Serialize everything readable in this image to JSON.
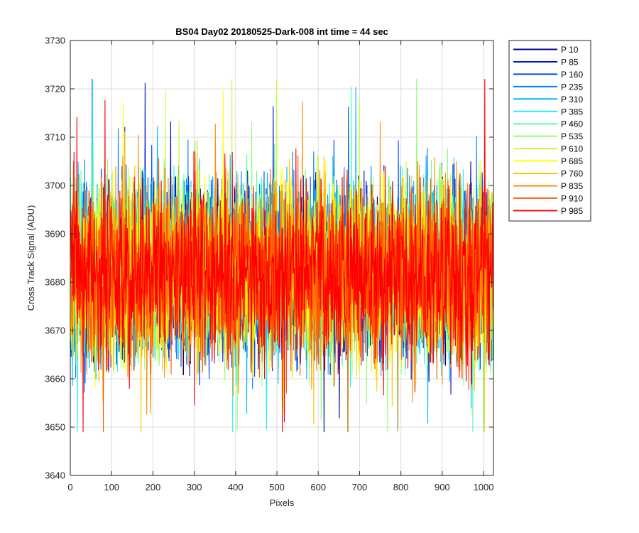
{
  "chart_data": {
    "type": "line",
    "title": "BS04 Day02 20180525-Dark-008 int time = 44 sec",
    "xlabel": "Pixels",
    "ylabel": "Cross Track Signal (ADU)",
    "xlim": [
      0,
      1024
    ],
    "ylim": [
      3640,
      3730
    ],
    "xticks": [
      0,
      100,
      200,
      300,
      400,
      500,
      600,
      700,
      800,
      900,
      1000
    ],
    "yticks": [
      3640,
      3650,
      3660,
      3670,
      3680,
      3690,
      3700,
      3710,
      3720,
      3730
    ],
    "grid": true,
    "legend_position": "outside-right",
    "n_points": 1024,
    "noise_model": {
      "mean": 3682,
      "typical_spread": 9,
      "min": 3649,
      "max": 3722
    },
    "series": [
      {
        "name": "P 10",
        "color": "#00008f"
      },
      {
        "name": "P 85",
        "color": "#0012d9"
      },
      {
        "name": "P 160",
        "color": "#0047ff"
      },
      {
        "name": "P 235",
        "color": "#0080ff"
      },
      {
        "name": "P 310",
        "color": "#00b8ff"
      },
      {
        "name": "P 385",
        "color": "#1cf2ef"
      },
      {
        "name": "P 460",
        "color": "#55ffaa"
      },
      {
        "name": "P 535",
        "color": "#8eff71"
      },
      {
        "name": "P 610",
        "color": "#c6ff39"
      },
      {
        "name": "P 685",
        "color": "#ffff00"
      },
      {
        "name": "P 760",
        "color": "#ffc700"
      },
      {
        "name": "P 835",
        "color": "#ff8e00"
      },
      {
        "name": "P 910",
        "color": "#ff5500"
      },
      {
        "name": "P 985",
        "color": "#ff0000"
      }
    ]
  }
}
